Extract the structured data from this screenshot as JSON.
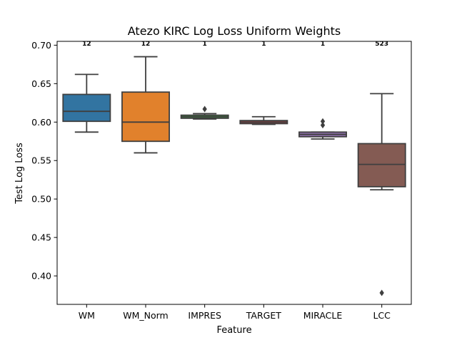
{
  "chart_data": {
    "type": "box",
    "title": "Atezo KIRC Log Loss Uniform Weights",
    "xlabel": "Feature",
    "ylabel": "Test Log Loss",
    "ylim": [
      0.363,
      0.705
    ],
    "yticks": [
      "0.40",
      "0.45",
      "0.50",
      "0.55",
      "0.60",
      "0.65",
      "0.70"
    ],
    "ytick_values": [
      0.4,
      0.45,
      0.5,
      0.55,
      0.6,
      0.65,
      0.7
    ],
    "grid": false,
    "categories": [
      "WM",
      "WM_Norm",
      "IMPRES",
      "TARGET",
      "MIRACLE",
      "LCC"
    ],
    "annotations": [
      "12",
      "12",
      "1",
      "1",
      "1",
      "523"
    ],
    "colors": [
      "#3274a1",
      "#e1812c",
      "#3a923a",
      "#c03d3e",
      "#9372b2",
      "#845b53"
    ],
    "line_color": "#3f3f3f",
    "boxes": [
      {
        "name": "WM",
        "whisker_low": 0.587,
        "q1": 0.601,
        "median": 0.614,
        "q3": 0.636,
        "whisker_high": 0.662,
        "outliers": []
      },
      {
        "name": "WM_Norm",
        "whisker_low": 0.56,
        "q1": 0.575,
        "median": 0.6,
        "q3": 0.639,
        "whisker_high": 0.685,
        "outliers": []
      },
      {
        "name": "IMPRES",
        "whisker_low": 0.604,
        "q1": 0.605,
        "median": 0.607,
        "q3": 0.609,
        "whisker_high": 0.611,
        "outliers": [
          0.617
        ]
      },
      {
        "name": "TARGET",
        "whisker_low": 0.597,
        "q1": 0.598,
        "median": 0.6,
        "q3": 0.602,
        "whisker_high": 0.607,
        "outliers": []
      },
      {
        "name": "MIRACLE",
        "whisker_low": 0.578,
        "q1": 0.581,
        "median": 0.584,
        "q3": 0.587,
        "whisker_high": 0.587,
        "outliers": [
          0.596,
          0.601
        ]
      },
      {
        "name": "LCC",
        "whisker_low": 0.512,
        "q1": 0.516,
        "median": 0.545,
        "q3": 0.572,
        "whisker_high": 0.637,
        "outliers": [
          0.378
        ]
      }
    ]
  }
}
